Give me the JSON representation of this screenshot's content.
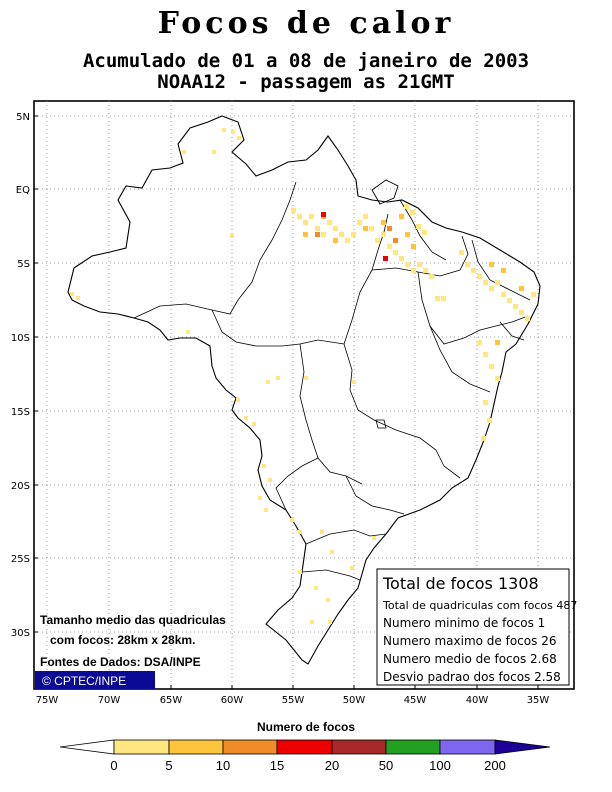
{
  "title": "Focos de calor",
  "subtitle1": "Acumulado de 01 a 08 de janeiro de 2003",
  "subtitle2": "NOAA12 - passagem as 21GMT",
  "lat_labels": [
    "5N",
    "EQ",
    "5S",
    "10S",
    "15S",
    "20S",
    "25S",
    "30S"
  ],
  "lon_labels": [
    "75W",
    "70W",
    "65W",
    "60W",
    "55W",
    "50W",
    "45W",
    "40W",
    "35W"
  ],
  "stats": {
    "total": "Total de focos 1308",
    "cells": "Total de quadriculas com focos 487",
    "min": "Numero minimo de focos 1",
    "max": "Numero maximo de focos 26",
    "mean": "Numero medio de focos 2.68",
    "std": "Desvio padrao dos focos 2.58"
  },
  "grid_note": {
    "line1": "Tamanho medio das quadriculas",
    "line2": "com focos: 28km x 28km.",
    "sources": "Fontes de Dados: DSA/INPE"
  },
  "credit": "© CPTEC/INPE",
  "legend": {
    "title": "Numero de focos",
    "ticks": [
      "0",
      "5",
      "10",
      "15",
      "20",
      "50",
      "100",
      "200"
    ],
    "colors": [
      "#ffe680",
      "#ffc33c",
      "#f08c28",
      "#ee0000",
      "#a62828",
      "#22a022",
      "#8066ee",
      "#1e0096"
    ]
  }
}
